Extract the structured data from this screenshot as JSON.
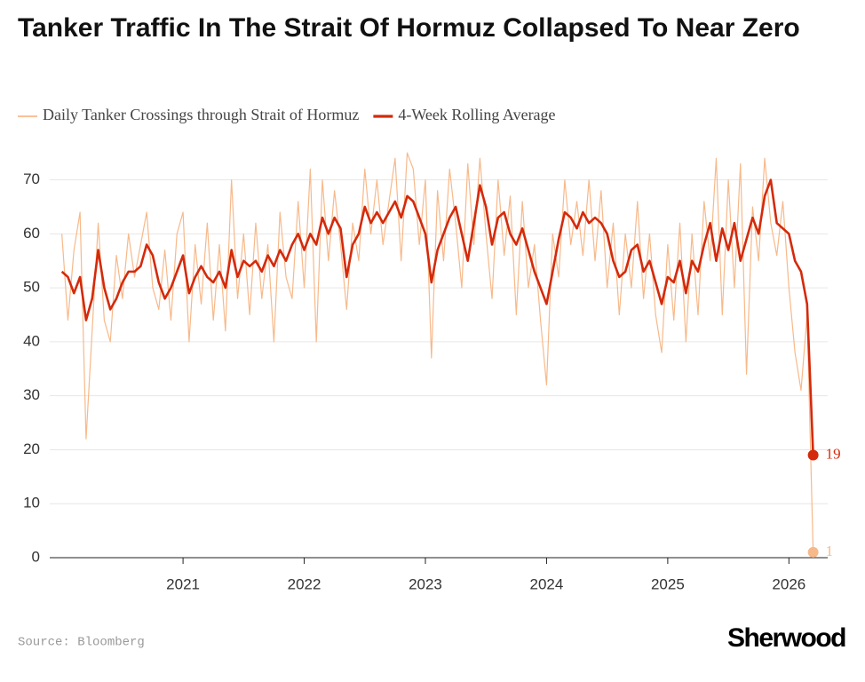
{
  "chart_data": {
    "type": "line",
    "title": "Tanker Traffic In The Strait Of Hormuz Collapsed To Near Zero",
    "source": "Source: Bloomberg",
    "brand": "Sherwood",
    "x": [
      2020.0,
      2020.05,
      2020.1,
      2020.15,
      2020.2,
      2020.25,
      2020.3,
      2020.35,
      2020.4,
      2020.45,
      2020.5,
      2020.55,
      2020.6,
      2020.65,
      2020.7,
      2020.75,
      2020.8,
      2020.85,
      2020.9,
      2020.95,
      2021.0,
      2021.05,
      2021.1,
      2021.15,
      2021.2,
      2021.25,
      2021.3,
      2021.35,
      2021.4,
      2021.45,
      2021.5,
      2021.55,
      2021.6,
      2021.65,
      2021.7,
      2021.75,
      2021.8,
      2021.85,
      2021.9,
      2021.95,
      2022.0,
      2022.05,
      2022.1,
      2022.15,
      2022.2,
      2022.25,
      2022.3,
      2022.35,
      2022.4,
      2022.45,
      2022.5,
      2022.55,
      2022.6,
      2022.65,
      2022.7,
      2022.75,
      2022.8,
      2022.85,
      2022.9,
      2022.95,
      2023.0,
      2023.05,
      2023.1,
      2023.15,
      2023.2,
      2023.25,
      2023.3,
      2023.35,
      2023.4,
      2023.45,
      2023.5,
      2023.55,
      2023.6,
      2023.65,
      2023.7,
      2023.75,
      2023.8,
      2023.85,
      2023.9,
      2023.95,
      2024.0,
      2024.05,
      2024.1,
      2024.15,
      2024.2,
      2024.25,
      2024.3,
      2024.35,
      2024.4,
      2024.45,
      2024.5,
      2024.55,
      2024.6,
      2024.65,
      2024.7,
      2024.75,
      2024.8,
      2024.85,
      2024.9,
      2024.95,
      2025.0,
      2025.05,
      2025.1,
      2025.15,
      2025.2,
      2025.25,
      2025.3,
      2025.35,
      2025.4,
      2025.45,
      2025.5,
      2025.55,
      2025.6,
      2025.65,
      2025.7,
      2025.75,
      2025.8,
      2025.85,
      2025.9,
      2025.95,
      2026.0,
      2026.05,
      2026.1,
      2026.15,
      2026.2
    ],
    "series": [
      {
        "name": "Daily Tanker Crossings through Strait of Hormuz",
        "color": "#f7b98a",
        "width": 1.2,
        "values": [
          60,
          44,
          57,
          64,
          22,
          42,
          62,
          44,
          40,
          56,
          48,
          60,
          52,
          58,
          64,
          50,
          46,
          57,
          44,
          60,
          64,
          40,
          58,
          47,
          62,
          44,
          58,
          42,
          70,
          48,
          60,
          45,
          62,
          48,
          58,
          40,
          64,
          52,
          48,
          66,
          50,
          72,
          40,
          70,
          55,
          68,
          58,
          46,
          62,
          55,
          72,
          60,
          70,
          58,
          66,
          74,
          55,
          75,
          72,
          58,
          70,
          37,
          68,
          55,
          72,
          62,
          50,
          73,
          58,
          74,
          60,
          48,
          70,
          56,
          67,
          45,
          66,
          50,
          58,
          44,
          32,
          60,
          52,
          70,
          58,
          66,
          56,
          70,
          55,
          68,
          50,
          62,
          45,
          60,
          50,
          66,
          48,
          60,
          45,
          38,
          58,
          44,
          62,
          40,
          60,
          45,
          66,
          55,
          74,
          45,
          70,
          50,
          73,
          34,
          65,
          55,
          74,
          62,
          56,
          66,
          50,
          38,
          31,
          45,
          1
        ]
      },
      {
        "name": "4-Week Rolling Average",
        "color": "#d42a0b",
        "width": 2.6,
        "values": [
          53,
          52,
          49,
          52,
          44,
          48,
          57,
          50,
          46,
          48,
          51,
          53,
          53,
          54,
          58,
          56,
          51,
          48,
          50,
          53,
          56,
          49,
          52,
          54,
          52,
          51,
          53,
          50,
          57,
          52,
          55,
          54,
          55,
          53,
          56,
          54,
          57,
          55,
          58,
          60,
          57,
          60,
          58,
          63,
          60,
          63,
          61,
          52,
          58,
          60,
          65,
          62,
          64,
          62,
          64,
          66,
          63,
          67,
          66,
          63,
          60,
          51,
          57,
          60,
          63,
          65,
          60,
          55,
          62,
          69,
          65,
          58,
          63,
          64,
          60,
          58,
          61,
          57,
          53,
          50,
          47,
          53,
          59,
          64,
          63,
          61,
          64,
          62,
          63,
          62,
          60,
          55,
          52,
          53,
          57,
          58,
          53,
          55,
          51,
          47,
          52,
          51,
          55,
          49,
          55,
          53,
          58,
          62,
          55,
          61,
          57,
          62,
          55,
          59,
          63,
          60,
          67,
          70,
          62,
          61,
          60,
          55,
          53,
          47,
          19
        ]
      }
    ],
    "xlim": [
      2019.9,
      2026.32
    ],
    "xticks": [
      2021,
      2022,
      2023,
      2024,
      2025,
      2026
    ],
    "ylim": [
      0,
      77
    ],
    "yticks": [
      0,
      10,
      20,
      30,
      40,
      50,
      60,
      70
    ],
    "grid": true
  }
}
